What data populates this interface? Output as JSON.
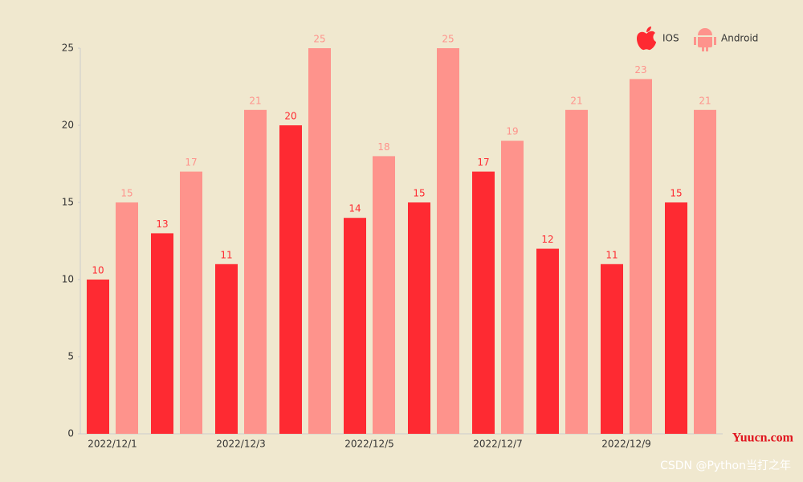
{
  "chart_data": {
    "type": "bar",
    "categories": [
      "2022/12/1",
      null,
      "2022/12/3",
      null,
      "2022/12/5",
      null,
      "2022/12/7",
      null,
      "2022/12/9",
      null
    ],
    "series": [
      {
        "name": "IOS",
        "color": "#fe2a32",
        "values": [
          10,
          13,
          11,
          20,
          14,
          15,
          17,
          12,
          11,
          15
        ]
      },
      {
        "name": "Android",
        "color": "#fe938c",
        "values": [
          15,
          17,
          21,
          25,
          18,
          25,
          19,
          21,
          23,
          21
        ]
      }
    ],
    "ylim": [
      0,
      25
    ],
    "yticks": [
      0,
      5,
      10,
      15,
      20,
      25
    ],
    "grid": false,
    "legend": "top-right",
    "annotations": [
      "Yuucn.com",
      "CSDN @Python当打之年"
    ]
  }
}
